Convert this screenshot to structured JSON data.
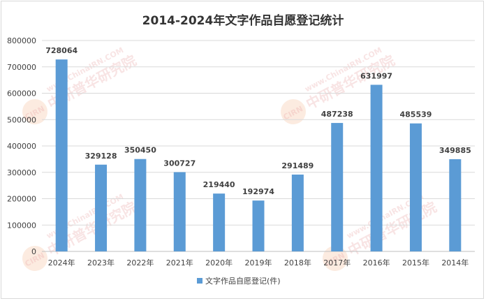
{
  "chart_data": {
    "type": "bar",
    "title": "2014-2024年文字作品自愿登记统计",
    "categories": [
      "2024年",
      "2023年",
      "2022年",
      "2021年",
      "2020年",
      "2019年",
      "2018年",
      "2017年",
      "2016年",
      "2015年",
      "2014年"
    ],
    "series": [
      {
        "name": "文字作品自愿登记(件)",
        "values": [
          728064,
          329128,
          350450,
          300727,
          219440,
          192974,
          291489,
          487238,
          631997,
          485539,
          349885
        ],
        "color": "#5b9bd5"
      }
    ],
    "ylim": [
      0,
      800000
    ],
    "yticks": [
      "0",
      "100000",
      "200000",
      "300000",
      "400000",
      "500000",
      "600000",
      "700000",
      "800000"
    ],
    "grid": true,
    "legend": "bottom"
  },
  "watermark": {
    "logo": "CIRN",
    "text": "中研普华研究院",
    "url": "www.ChinaIRN.COM"
  }
}
